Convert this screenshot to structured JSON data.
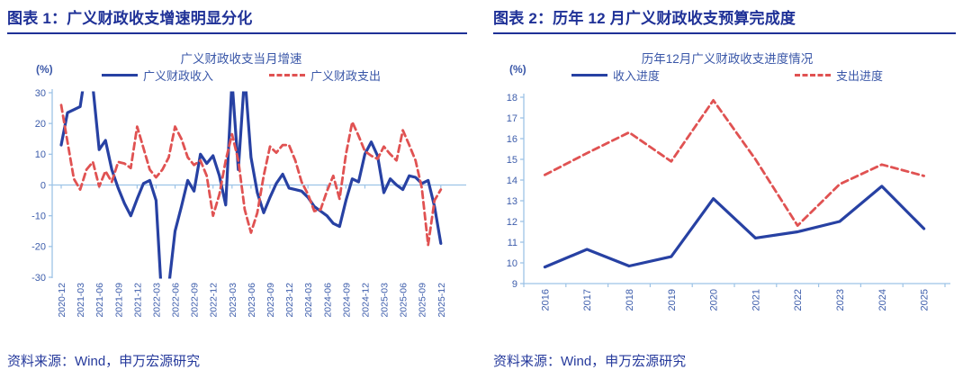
{
  "figure1": {
    "header": "图表 1：广义财政收支增速明显分化",
    "source": "资料来源：Wind，申万宏源研究"
  },
  "figure2": {
    "header": "图表 2：历年 12 月广义财政收支预算完成度",
    "source": "资料来源：Wind，申万宏源研究"
  },
  "colors": {
    "header_navy": "#1f3197",
    "blue_line": "#2741a3",
    "red_line": "#e05252",
    "axis_blue": "#9dc3e6",
    "tick_text_blue": "#3d5dab",
    "source_text": "#263a9c"
  },
  "chart_data": [
    {
      "type": "line",
      "title": "广义财政收支当月增速",
      "ylabel": "(%)",
      "ylim": [
        -30,
        30
      ],
      "ytick_step": 10,
      "x_axis_at": 0,
      "grid": false,
      "legend_position": "top",
      "tick_every": 3,
      "x_tick_labels": [
        "2020-12",
        "2021-03",
        "2021-06",
        "2021-09",
        "2021-12",
        "2022-03",
        "2022-06",
        "2022-09",
        "2022-12",
        "2023-03",
        "2023-06",
        "2023-09",
        "2023-12",
        "2024-03",
        "2024-06",
        "2024-09",
        "2024-12",
        "2025-03",
        "2025-06",
        "2025-09",
        "2025-12"
      ],
      "x_start_month": "2020-12",
      "x_end_month": "2025-12",
      "series": [
        {
          "name": "广义财政收入",
          "style": "solid",
          "color": "#2741a3",
          "values": [
            13,
            23.5,
            24.5,
            25.5,
            39,
            32,
            11.5,
            14.5,
            5,
            -1,
            -6,
            -10,
            -4.5,
            0.5,
            1.5,
            -5,
            -41,
            -33,
            -15,
            -7,
            1.5,
            -2,
            10,
            7,
            9.5,
            3,
            -6.5,
            34,
            5,
            36,
            9,
            -2.5,
            -9,
            -4,
            0.5,
            3.5,
            -1,
            -1.5,
            -2,
            -4,
            -7,
            -8.5,
            -10,
            -12.5,
            -13.5,
            -5,
            2,
            1,
            10,
            14,
            9.5,
            -2.5,
            2,
            0,
            -1.5,
            3,
            2.5,
            0.5,
            1.5,
            -7,
            -19
          ]
        },
        {
          "name": "广义财政支出",
          "style": "dashed",
          "color": "#e05252",
          "values": [
            26,
            14,
            2,
            -1.5,
            5,
            7.5,
            -0.5,
            4.5,
            1,
            7.5,
            7,
            5.5,
            19,
            12,
            5,
            2.5,
            5,
            9,
            19,
            15,
            9,
            6.5,
            8,
            3,
            -10,
            -3,
            8,
            16.5,
            8,
            -8,
            -15.5,
            -9,
            3,
            12.5,
            10.5,
            13,
            13,
            8,
            1,
            -3,
            -8.5,
            -8,
            -2,
            3,
            -4.5,
            10,
            20.5,
            16,
            11,
            9.5,
            8.5,
            12.5,
            10,
            8,
            17.8,
            13,
            8,
            -1,
            -19.5,
            -5,
            -1.5
          ]
        }
      ]
    },
    {
      "type": "line",
      "title": "历年12月广义财政收支进度情况",
      "ylabel": "(%)",
      "ylim": [
        9,
        18
      ],
      "ytick_step": 1,
      "grid": false,
      "legend_position": "top",
      "categories": [
        "2016",
        "2017",
        "2018",
        "2019",
        "2020",
        "2021",
        "2022",
        "2023",
        "2024",
        "2025"
      ],
      "series": [
        {
          "name": "收入进度",
          "style": "solid",
          "color": "#2741a3",
          "values": [
            9.8,
            10.65,
            9.85,
            10.3,
            13.1,
            11.2,
            11.5,
            12.0,
            13.7,
            11.65
          ]
        },
        {
          "name": "支出进度",
          "style": "dashed",
          "color": "#e05252",
          "values": [
            14.25,
            15.3,
            16.3,
            14.9,
            17.85,
            15.0,
            11.8,
            13.8,
            14.75,
            14.2
          ]
        }
      ]
    }
  ]
}
